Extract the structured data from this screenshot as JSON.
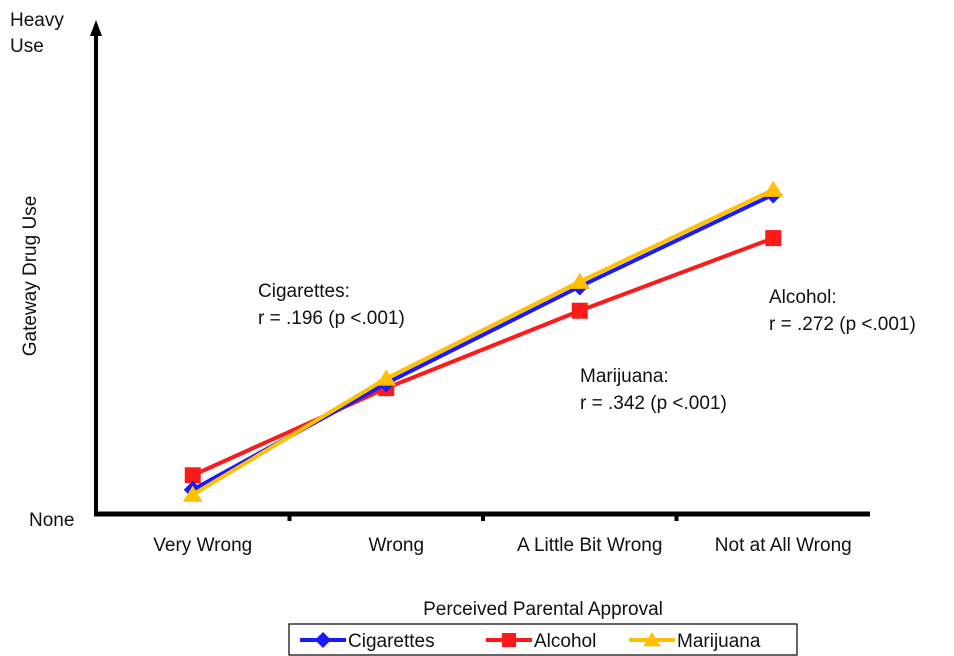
{
  "chart_data": {
    "type": "line",
    "categories": [
      "Very Wrong",
      "Wrong",
      "A Little Bit Wrong",
      "Not at All Wrong"
    ],
    "xlabel": "Perceived Parental Approval",
    "ylabel": "Gateway Drug Use",
    "y_tick_labels": {
      "top": [
        "Heavy",
        "Use"
      ],
      "bottom": "None"
    },
    "ylim": [
      0,
      100
    ],
    "grid": false,
    "legend_position": "bottom",
    "series": [
      {
        "name": "Cigarettes",
        "color": "#1a1aff",
        "marker": "diamond",
        "values": [
          5,
          27,
          47,
          66
        ]
      },
      {
        "name": "Alcohol",
        "color": "#ff1a1a",
        "marker": "square",
        "values": [
          8,
          26,
          42,
          57
        ]
      },
      {
        "name": "Marijuana",
        "color": "#ffc000",
        "marker": "triangle",
        "values": [
          4,
          28,
          48,
          67
        ]
      }
    ],
    "annotations": [
      {
        "lines": [
          "Cigarettes:",
          "r = .196 (p <.001)"
        ]
      },
      {
        "lines": [
          "Alcohol:",
          "r = .272 (p <.001)"
        ]
      },
      {
        "lines": [
          "Marijuana:",
          "r = .342 (p <.001)"
        ]
      }
    ]
  }
}
